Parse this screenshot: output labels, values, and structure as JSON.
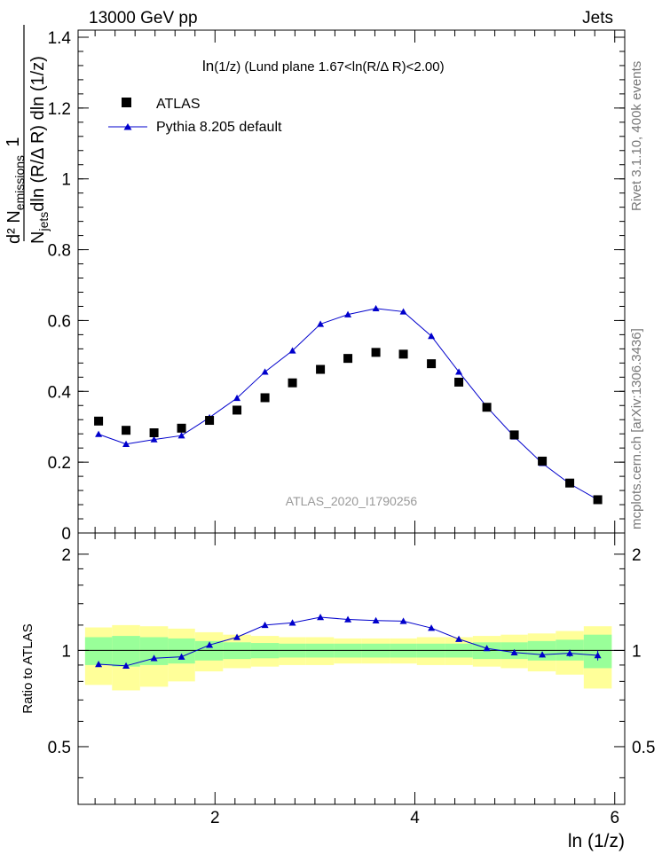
{
  "header": {
    "left": "13000 GeV pp",
    "right": "Jets"
  },
  "side_labels": {
    "rivet": "Rivet 3.1.10,  400k events",
    "mcplots": "mcplots.cern.ch [arXiv:1306.3436]"
  },
  "colors": {
    "atlas": "#000000",
    "pythia": "#0000cc",
    "band_inner": "#99ff99",
    "band_outer": "#ffff99",
    "watermark": "#999999"
  },
  "chart_data": [
    {
      "type": "scatter",
      "panel": "main",
      "title": "ln(1/z) (Lund plane 1.67<ln(R/Δ R)<2.00)",
      "title_main": "ln",
      "title_sub": "(1/z)",
      "title_rest": " (Lund plane 1.67<ln(R/Δ R)<2.00)",
      "ylabel": "1/N_jets dln (R/Δ R) · d² N_emissions / dln (1/z)",
      "ylabel_num": "d² N",
      "ylabel_num_sub": "emissions",
      "ylabel_den": "N",
      "ylabel_den_sub": "jets",
      "ylabel_den_rest": "dln (R/Δ R) dln (1/z)",
      "ylabel_one": "1",
      "watermark": "ATLAS_2020_I1790256",
      "xlim": [
        0.63,
        6.1
      ],
      "ylim": [
        0,
        1.42
      ],
      "yticks": [
        0,
        0.2,
        0.4,
        0.6,
        0.8,
        1,
        1.2,
        1.4
      ],
      "yticklabels": [
        "0",
        "0.2",
        "0.4",
        "0.6",
        "0.8",
        "1",
        "1.2",
        "1.4"
      ],
      "legend": [
        "ATLAS",
        "Pythia 8.205 default"
      ],
      "legend_position": "top-left",
      "x": [
        0.835,
        1.11,
        1.39,
        1.665,
        1.945,
        2.22,
        2.5,
        2.775,
        3.055,
        3.33,
        3.61,
        3.885,
        4.165,
        4.44,
        4.72,
        4.995,
        5.275,
        5.55,
        5.83
      ],
      "series": [
        {
          "name": "ATLAS",
          "marker": "square",
          "values": [
            0.316,
            0.29,
            0.283,
            0.296,
            0.318,
            0.347,
            0.382,
            0.424,
            0.462,
            0.493,
            0.51,
            0.505,
            0.478,
            0.426,
            0.355,
            0.277,
            0.203,
            0.141,
            0.094
          ]
        },
        {
          "name": "Pythia 8.205 default",
          "marker": "triangle",
          "values": [
            0.279,
            0.251,
            0.264,
            0.275,
            0.326,
            0.381,
            0.455,
            0.515,
            0.59,
            0.617,
            0.634,
            0.625,
            0.556,
            0.455,
            0.356,
            0.272,
            0.197,
            0.139,
            0.094
          ]
        }
      ]
    },
    {
      "type": "line",
      "panel": "ratio",
      "ylabel": "Ratio to ATLAS",
      "xlabel": "ln (1/z)",
      "xlim": [
        0.63,
        6.1
      ],
      "ylim": [
        0.33,
        2.33
      ],
      "xticks": [
        2,
        4,
        6
      ],
      "xticklabels": [
        "2",
        "4",
        "6"
      ],
      "yticks": [
        0.5,
        1,
        2
      ],
      "yticklabels": [
        "0.5",
        "1",
        "2"
      ],
      "bin_edges": [
        0.7,
        0.97,
        1.25,
        1.53,
        1.8,
        2.08,
        2.36,
        2.64,
        2.91,
        3.19,
        3.47,
        3.75,
        4.02,
        4.3,
        4.58,
        4.86,
        5.13,
        5.41,
        5.69,
        5.97
      ],
      "band_inner": [
        [
          0.9,
          1.1
        ],
        [
          0.89,
          1.11
        ],
        [
          0.9,
          1.1
        ],
        [
          0.91,
          1.09
        ],
        [
          0.93,
          1.07
        ],
        [
          0.94,
          1.06
        ],
        [
          0.945,
          1.055
        ],
        [
          0.95,
          1.05
        ],
        [
          0.95,
          1.05
        ],
        [
          0.95,
          1.05
        ],
        [
          0.95,
          1.05
        ],
        [
          0.95,
          1.05
        ],
        [
          0.95,
          1.05
        ],
        [
          0.95,
          1.05
        ],
        [
          0.94,
          1.06
        ],
        [
          0.94,
          1.06
        ],
        [
          0.93,
          1.07
        ],
        [
          0.93,
          1.08
        ],
        [
          0.88,
          1.12
        ]
      ],
      "band_outer": [
        [
          0.78,
          1.18
        ],
        [
          0.75,
          1.2
        ],
        [
          0.77,
          1.19
        ],
        [
          0.8,
          1.17
        ],
        [
          0.86,
          1.14
        ],
        [
          0.88,
          1.12
        ],
        [
          0.89,
          1.11
        ],
        [
          0.9,
          1.1
        ],
        [
          0.9,
          1.1
        ],
        [
          0.91,
          1.09
        ],
        [
          0.91,
          1.09
        ],
        [
          0.91,
          1.09
        ],
        [
          0.9,
          1.1
        ],
        [
          0.9,
          1.1
        ],
        [
          0.89,
          1.11
        ],
        [
          0.88,
          1.12
        ],
        [
          0.86,
          1.13
        ],
        [
          0.84,
          1.15
        ],
        [
          0.76,
          1.19
        ]
      ],
      "x": [
        0.835,
        1.11,
        1.39,
        1.665,
        1.945,
        2.22,
        2.5,
        2.775,
        3.055,
        3.33,
        3.61,
        3.885,
        4.165,
        4.44,
        4.72,
        4.995,
        5.275,
        5.55,
        5.83
      ],
      "series": [
        {
          "name": "Pythia 8.205 default / ATLAS",
          "values": [
            0.905,
            0.895,
            0.945,
            0.955,
            1.04,
            1.1,
            1.2,
            1.22,
            1.27,
            1.25,
            1.24,
            1.235,
            1.175,
            1.085,
            1.015,
            0.985,
            0.97,
            0.98,
            0.965
          ],
          "errors": [
            0.01,
            0.01,
            0.01,
            0.01,
            0.01,
            0.01,
            0.01,
            0.01,
            0.01,
            0.01,
            0.01,
            0.01,
            0.01,
            0.01,
            0.01,
            0.015,
            0.02,
            0.025,
            0.035
          ]
        }
      ]
    }
  ]
}
